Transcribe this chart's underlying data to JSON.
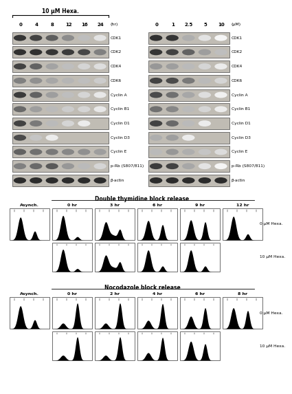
{
  "white": "#ffffff",
  "black": "#000000",
  "wb_bg": "#c8c4bc",
  "band_dark": "#1a1a1a",
  "title_left": "10 μM Hexa.",
  "left_time_labels": [
    "0",
    "4",
    "8",
    "12",
    "16",
    "24"
  ],
  "left_unit": "(hr)",
  "right_conc_labels": [
    "0",
    "1",
    "2.5",
    "5",
    "10"
  ],
  "right_unit": "(μM)",
  "protein_labels": [
    "CDK1",
    "CDK2",
    "CDK4",
    "CDK6",
    "Cyclin A",
    "Cyclin B1",
    "Cyclin D1",
    "Cyclin D3",
    "Cyclin E",
    "p-Rb (S807/811)",
    "β-actin"
  ],
  "dtb_title": "Double thymidine block release",
  "dtb_top_labels": [
    "Asynch.",
    "0 hr",
    "3 hr",
    "6 hr",
    "9 hr",
    "12 hr"
  ],
  "dtb_label_0um": "0 μM Hexa.",
  "dtb_label_10um": "10 μM Hexa.",
  "noc_title": "Nocodazole block release",
  "noc_top_labels": [
    "Asynch.",
    "0 hr",
    "2 hr",
    "4 hr",
    "6 hr",
    "8 hr"
  ],
  "noc_label_0um": "0 μM Hexa.",
  "noc_label_10um": "10 μM Hexa.",
  "band_data_left": {
    "CDK1": [
      0.88,
      0.82,
      0.7,
      0.5,
      0.28,
      0.12
    ],
    "CDK2": [
      0.9,
      0.9,
      0.88,
      0.85,
      0.8,
      0.55
    ],
    "CDK4": [
      0.82,
      0.68,
      0.4,
      0.28,
      0.18,
      0.14
    ],
    "CDK6": [
      0.55,
      0.48,
      0.38,
      0.32,
      0.28,
      0.22
    ],
    "Cyclin A": [
      0.85,
      0.68,
      0.42,
      0.28,
      0.18,
      0.1
    ],
    "Cyclin B1": [
      0.65,
      0.42,
      0.3,
      0.22,
      0.18,
      0.1
    ],
    "Cyclin D1": [
      0.82,
      0.58,
      0.3,
      0.18,
      0.08,
      0.0
    ],
    "Cyclin D3": [
      0.78,
      0.25,
      0.08,
      0.0,
      0.0,
      0.0
    ],
    "Cyclin E": [
      0.68,
      0.62,
      0.58,
      0.52,
      0.48,
      0.42
    ],
    "p-Rb (S807/811)": [
      0.55,
      0.65,
      0.72,
      0.45,
      0.3,
      0.18
    ],
    "β-actin": [
      0.92,
      0.92,
      0.92,
      0.92,
      0.92,
      0.92
    ]
  },
  "band_data_right": {
    "CDK1": [
      0.9,
      0.88,
      0.35,
      0.12,
      0.04
    ],
    "CDK2": [
      0.88,
      0.82,
      0.68,
      0.42,
      0.28
    ],
    "CDK4": [
      0.45,
      0.42,
      0.3,
      0.18,
      0.08
    ],
    "CDK6": [
      0.82,
      0.78,
      0.58,
      0.3,
      0.18
    ],
    "Cyclin A": [
      0.78,
      0.62,
      0.38,
      0.14,
      0.06
    ],
    "Cyclin B1": [
      0.62,
      0.52,
      0.3,
      0.18,
      0.08
    ],
    "Cyclin D1": [
      0.82,
      0.65,
      0.3,
      0.08,
      0.0
    ],
    "Cyclin D3": [
      0.35,
      0.42,
      0.08,
      0.0,
      0.0
    ],
    "Cyclin E": [
      0.3,
      0.45,
      0.35,
      0.25,
      0.15
    ],
    "p-Rb (S807/811)": [
      0.85,
      0.82,
      0.38,
      0.12,
      0.04
    ],
    "β-actin": [
      0.92,
      0.92,
      0.92,
      0.92,
      0.92
    ]
  }
}
